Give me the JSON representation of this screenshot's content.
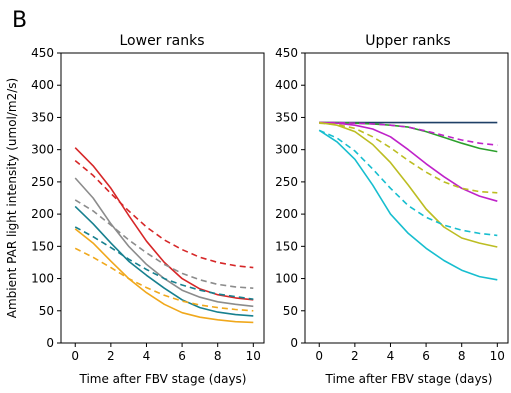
{
  "panel_label": "B",
  "colors": {
    "red": "#d62728",
    "gray": "#8c8c8c",
    "teal": "#17808f",
    "yellow": "#f0a81c",
    "darkblue": "#1f3f66",
    "green": "#2ca02c",
    "magenta": "#bf22c9",
    "olive": "#bcbd22",
    "cyan": "#17becf"
  },
  "chart_data": [
    {
      "type": "line",
      "title": "Lower ranks",
      "xlabel": "Time after FBV stage (days)",
      "ylabel": "Ambient PAR light intensity (umol/m2/s)",
      "xlim": [
        -0.8,
        10.6
      ],
      "ylim": [
        0,
        450
      ],
      "xticks": [
        "0",
        "2",
        "4",
        "6",
        "8",
        "10"
      ],
      "yticks": [
        "0",
        "50",
        "100",
        "150",
        "200",
        "250",
        "300",
        "350",
        "400",
        "450"
      ],
      "x": [
        0,
        1,
        2,
        3,
        4,
        5,
        6,
        7,
        8,
        9,
        10
      ],
      "series": [
        {
          "color": "red",
          "dash": "solid",
          "values": [
            303,
            275,
            240,
            198,
            158,
            125,
            100,
            84,
            75,
            70,
            67
          ]
        },
        {
          "color": "red",
          "dash": "dashed",
          "values": [
            283,
            260,
            232,
            205,
            180,
            160,
            145,
            133,
            125,
            120,
            117
          ]
        },
        {
          "color": "gray",
          "dash": "solid",
          "values": [
            256,
            225,
            185,
            150,
            122,
            100,
            82,
            71,
            64,
            60,
            57
          ]
        },
        {
          "color": "gray",
          "dash": "dashed",
          "values": [
            222,
            205,
            183,
            160,
            140,
            122,
            108,
            98,
            91,
            87,
            85
          ]
        },
        {
          "color": "teal",
          "dash": "solid",
          "values": [
            212,
            185,
            155,
            127,
            105,
            85,
            67,
            55,
            48,
            44,
            42
          ]
        },
        {
          "color": "teal",
          "dash": "dashed",
          "values": [
            180,
            165,
            148,
            130,
            114,
            100,
            90,
            82,
            76,
            72,
            68
          ]
        },
        {
          "color": "yellow",
          "dash": "solid",
          "values": [
            177,
            155,
            127,
            100,
            78,
            60,
            47,
            40,
            36,
            33,
            32
          ]
        },
        {
          "color": "yellow",
          "dash": "dashed",
          "values": [
            147,
            133,
            117,
            100,
            86,
            74,
            65,
            59,
            55,
            52,
            50
          ]
        }
      ]
    },
    {
      "type": "line",
      "title": "Upper ranks",
      "xlabel": "Time after FBV stage (days)",
      "ylabel": "",
      "xlim": [
        -0.8,
        10.6
      ],
      "ylim": [
        0,
        450
      ],
      "xticks": [
        "0",
        "2",
        "4",
        "6",
        "8",
        "10"
      ],
      "yticks": [
        "0",
        "50",
        "100",
        "150",
        "200",
        "250",
        "300",
        "350",
        "400",
        "450"
      ],
      "x": [
        0,
        1,
        2,
        3,
        4,
        5,
        6,
        7,
        8,
        9,
        10
      ],
      "series": [
        {
          "color": "darkblue",
          "dash": "solid",
          "values": [
            342,
            342,
            342,
            342,
            342,
            342,
            342,
            342,
            342,
            342,
            342
          ]
        },
        {
          "color": "green",
          "dash": "solid",
          "values": [
            342,
            342,
            341,
            340,
            338,
            335,
            328,
            319,
            310,
            302,
            297
          ]
        },
        {
          "color": "magenta",
          "dash": "dashed",
          "values": [
            342,
            342,
            341,
            340,
            338,
            335,
            329,
            322,
            315,
            310,
            307
          ]
        },
        {
          "color": "magenta",
          "dash": "solid",
          "values": [
            342,
            341,
            338,
            332,
            320,
            300,
            278,
            258,
            240,
            228,
            220
          ]
        },
        {
          "color": "olive",
          "dash": "dashed",
          "values": [
            341,
            339,
            333,
            320,
            303,
            283,
            265,
            250,
            240,
            235,
            233
          ]
        },
        {
          "color": "olive",
          "dash": "solid",
          "values": [
            342,
            338,
            328,
            308,
            280,
            245,
            208,
            180,
            163,
            155,
            149
          ]
        },
        {
          "color": "cyan",
          "dash": "dashed",
          "values": [
            330,
            318,
            298,
            270,
            240,
            213,
            195,
            183,
            175,
            170,
            167
          ]
        },
        {
          "color": "cyan",
          "dash": "solid",
          "values": [
            330,
            312,
            285,
            245,
            200,
            170,
            147,
            128,
            113,
            103,
            98
          ]
        }
      ]
    }
  ]
}
